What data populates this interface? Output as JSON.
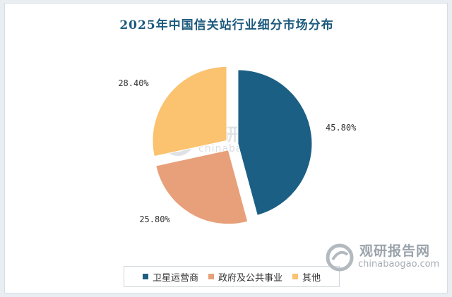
{
  "chart_data": {
    "type": "pie",
    "title": "2025年中国信关站行业细分市场分布",
    "slices": [
      {
        "label": "卫星运营商",
        "value": 45.8,
        "value_label": "45.80%",
        "color": "#1c5f84"
      },
      {
        "label": "政府及公共事业",
        "value": 25.8,
        "value_label": "25.80%",
        "color": "#e8a07a"
      },
      {
        "label": "其他",
        "value": 28.4,
        "value_label": "28.40%",
        "color": "#fbc26f"
      }
    ],
    "exploded": true,
    "legend_position": "bottom"
  },
  "watermark": {
    "cn": "观研报告网",
    "en": "chinabaogao.com"
  }
}
